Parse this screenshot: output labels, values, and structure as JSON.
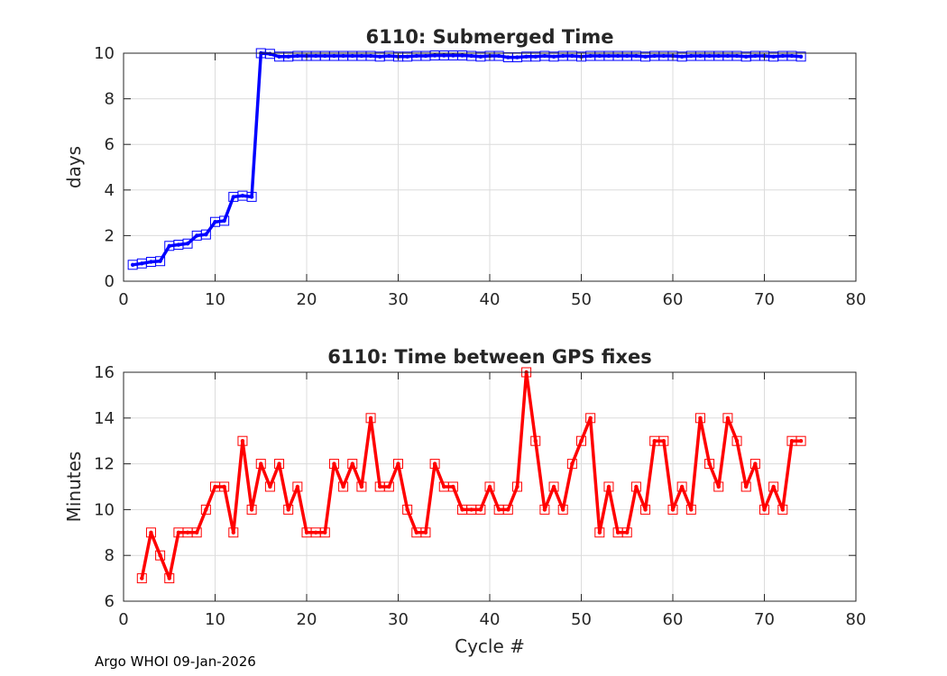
{
  "footer": "Argo WHOI 09-Jan-2026",
  "chart_data": [
    {
      "type": "line",
      "title": "6110: Submerged Time",
      "xlabel": "",
      "ylabel": "days",
      "xlim": [
        0,
        80
      ],
      "ylim": [
        0,
        10
      ],
      "xticks": [
        0,
        10,
        20,
        30,
        40,
        50,
        60,
        70,
        80
      ],
      "yticks": [
        0,
        2,
        4,
        6,
        8,
        10
      ],
      "grid": true,
      "color": "#0000ff",
      "marker": "square",
      "series": [
        {
          "x": [
            1,
            2,
            3,
            4,
            5,
            6,
            7,
            8,
            9,
            10,
            11,
            12,
            13,
            14,
            15,
            16,
            17,
            18,
            19,
            20,
            21,
            22,
            23,
            24,
            25,
            26,
            27,
            28,
            29,
            30,
            31,
            32,
            33,
            34,
            35,
            36,
            37,
            38,
            39,
            40,
            41,
            42,
            43,
            44,
            45,
            46,
            47,
            48,
            49,
            50,
            51,
            52,
            53,
            54,
            55,
            56,
            57,
            58,
            59,
            60,
            61,
            62,
            63,
            64,
            65,
            66,
            67,
            68,
            69,
            70,
            71,
            72,
            73,
            74
          ],
          "y": [
            0.72,
            0.78,
            0.85,
            0.88,
            1.55,
            1.6,
            1.65,
            2.0,
            2.05,
            2.6,
            2.65,
            3.7,
            3.75,
            3.7,
            10.0,
            9.97,
            9.85,
            9.85,
            9.88,
            9.88,
            9.88,
            9.88,
            9.88,
            9.88,
            9.88,
            9.88,
            9.88,
            9.85,
            9.88,
            9.85,
            9.85,
            9.88,
            9.88,
            9.9,
            9.9,
            9.9,
            9.9,
            9.88,
            9.85,
            9.88,
            9.88,
            9.82,
            9.82,
            9.85,
            9.85,
            9.88,
            9.85,
            9.88,
            9.88,
            9.85,
            9.88,
            9.88,
            9.88,
            9.88,
            9.88,
            9.88,
            9.85,
            9.88,
            9.88,
            9.88,
            9.85,
            9.88,
            9.88,
            9.88,
            9.88,
            9.88,
            9.88,
            9.85,
            9.88,
            9.88,
            9.85,
            9.88,
            9.88,
            9.85
          ]
        }
      ]
    },
    {
      "type": "line",
      "title": "6110: Time between GPS fixes",
      "xlabel": "Cycle #",
      "ylabel": "Minutes",
      "xlim": [
        0,
        80
      ],
      "ylim": [
        6,
        16
      ],
      "xticks": [
        0,
        10,
        20,
        30,
        40,
        50,
        60,
        70,
        80
      ],
      "yticks": [
        6,
        8,
        10,
        12,
        14,
        16
      ],
      "grid": true,
      "color": "#ff0000",
      "marker": "square",
      "series": [
        {
          "x": [
            2,
            3,
            4,
            5,
            6,
            7,
            8,
            9,
            10,
            11,
            12,
            13,
            14,
            15,
            16,
            17,
            18,
            19,
            20,
            21,
            22,
            23,
            24,
            25,
            26,
            27,
            28,
            29,
            30,
            31,
            32,
            33,
            34,
            35,
            36,
            37,
            38,
            39,
            40,
            41,
            42,
            43,
            44,
            45,
            46,
            47,
            48,
            49,
            50,
            51,
            52,
            53,
            54,
            55,
            56,
            57,
            58,
            59,
            60,
            61,
            62,
            63,
            64,
            65,
            66,
            67,
            68,
            69,
            70,
            71,
            72,
            73,
            74
          ],
          "y": [
            7,
            9,
            8,
            7,
            9,
            9,
            9,
            10,
            11,
            11,
            9,
            13,
            10,
            12,
            11,
            12,
            10,
            11,
            9,
            9,
            9,
            12,
            11,
            12,
            11,
            14,
            11,
            11,
            12,
            10,
            9,
            9,
            12,
            11,
            11,
            10,
            10,
            10,
            11,
            10,
            10,
            11,
            16,
            13,
            10,
            11,
            10,
            12,
            13,
            14,
            9,
            11,
            9,
            9,
            11,
            10,
            13,
            13,
            10,
            11,
            10,
            14,
            12,
            11,
            14,
            13,
            11,
            12,
            10,
            11,
            10,
            13,
            13
          ]
        }
      ]
    }
  ]
}
